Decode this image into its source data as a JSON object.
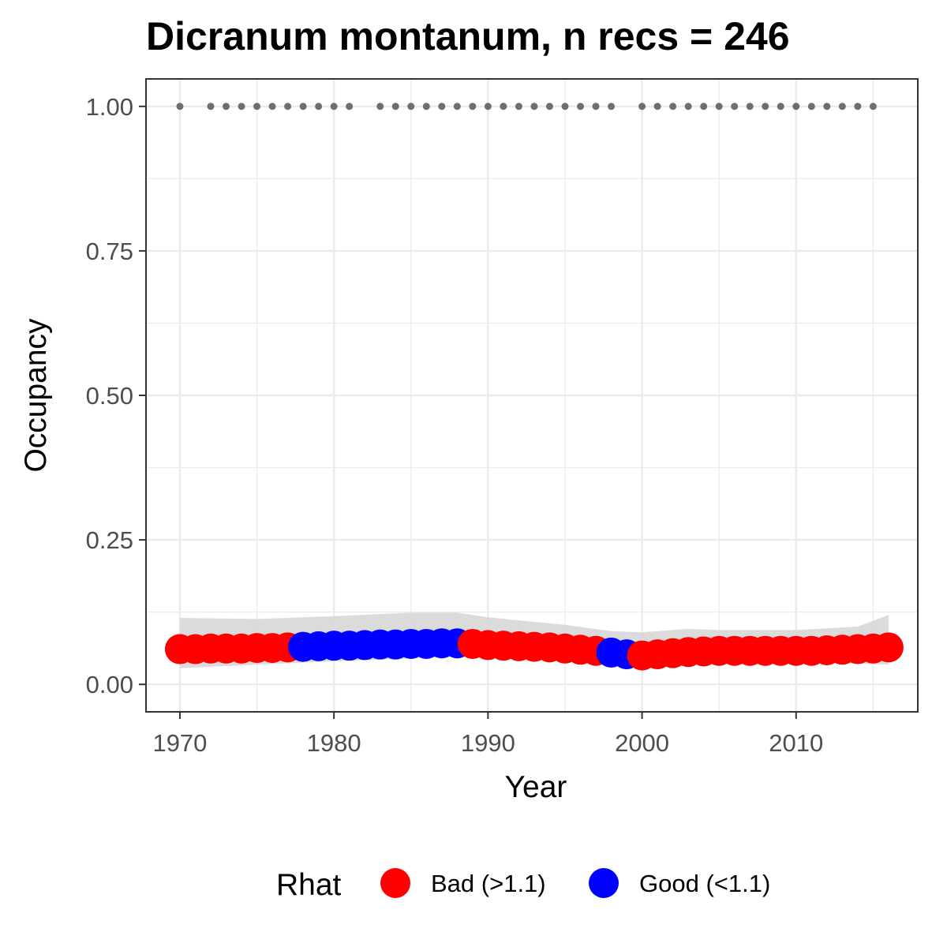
{
  "chart_data": {
    "type": "scatter",
    "title": "Dicranum montanum, n recs = 246",
    "xlabel": "Year",
    "ylabel": "Occupancy",
    "xlim": [
      1967.8,
      2017.9
    ],
    "ylim": [
      -0.0475,
      1.0475
    ],
    "x_ticks": [
      1970,
      1980,
      1990,
      2000,
      2010
    ],
    "x_tick_labels": [
      "1970",
      "1980",
      "1990",
      "2000",
      "2010"
    ],
    "y_ticks": [
      0,
      0.25,
      0.5,
      0.75,
      1.0
    ],
    "y_tick_labels": [
      "0.00",
      "0.25",
      "0.50",
      "0.75",
      "1.00"
    ],
    "grid": true,
    "legend": {
      "title": "Rhat",
      "position": "bottom",
      "items": [
        {
          "label": "Bad (>1.1)",
          "color": "#ff0000"
        },
        {
          "label": "Good (<1.1)",
          "color": "#0000ff"
        }
      ]
    },
    "colors": {
      "Bad": "#ff0000",
      "Good": "#0000ff",
      "ribbon": "#d9d9d9",
      "records": "#6e6e6e"
    },
    "series": [
      {
        "name": "Rhat",
        "x": [
          1970,
          1971,
          1972,
          1973,
          1974,
          1975,
          1976,
          1977,
          1978,
          1979,
          1980,
          1981,
          1982,
          1983,
          1984,
          1985,
          1986,
          1987,
          1988,
          1989,
          1990,
          1991,
          1992,
          1993,
          1994,
          1995,
          1996,
          1997,
          1998,
          1999,
          2000,
          2001,
          2002,
          2003,
          2004,
          2005,
          2006,
          2007,
          2008,
          2009,
          2010,
          2011,
          2012,
          2013,
          2014,
          2015,
          2016
        ],
        "y": [
          0.061,
          0.061,
          0.062,
          0.062,
          0.062,
          0.063,
          0.063,
          0.064,
          0.065,
          0.066,
          0.067,
          0.067,
          0.068,
          0.069,
          0.069,
          0.07,
          0.07,
          0.071,
          0.071,
          0.07,
          0.068,
          0.067,
          0.066,
          0.065,
          0.064,
          0.062,
          0.06,
          0.058,
          0.055,
          0.052,
          0.05,
          0.052,
          0.054,
          0.056,
          0.057,
          0.058,
          0.058,
          0.058,
          0.058,
          0.058,
          0.058,
          0.058,
          0.059,
          0.06,
          0.061,
          0.062,
          0.064
        ],
        "rhat": [
          "Bad",
          "Bad",
          "Bad",
          "Bad",
          "Bad",
          "Bad",
          "Bad",
          "Bad",
          "Good",
          "Good",
          "Good",
          "Good",
          "Good",
          "Good",
          "Good",
          "Good",
          "Good",
          "Good",
          "Good",
          "Bad",
          "Bad",
          "Bad",
          "Bad",
          "Bad",
          "Bad",
          "Bad",
          "Bad",
          "Bad",
          "Good",
          "Good",
          "Bad",
          "Bad",
          "Bad",
          "Bad",
          "Bad",
          "Bad",
          "Bad",
          "Bad",
          "Bad",
          "Bad",
          "Bad",
          "Bad",
          "Bad",
          "Bad",
          "Bad",
          "Bad",
          "Bad"
        ]
      },
      {
        "name": "ribbon",
        "x": [
          1970,
          1975,
          1980,
          1985,
          1988,
          1990,
          1995,
          1998,
          2000,
          2003,
          2005,
          2010,
          2014,
          2016
        ],
        "lower": [
          0.028,
          0.034,
          0.04,
          0.045,
          0.048,
          0.048,
          0.042,
          0.035,
          0.032,
          0.034,
          0.035,
          0.036,
          0.036,
          0.034
        ],
        "upper": [
          0.115,
          0.113,
          0.118,
          0.124,
          0.124,
          0.116,
          0.103,
          0.092,
          0.09,
          0.096,
          0.094,
          0.094,
          0.1,
          0.12
        ]
      },
      {
        "name": "records",
        "x": [
          1970,
          1972,
          1973,
          1974,
          1975,
          1976,
          1977,
          1978,
          1979,
          1980,
          1981,
          1983,
          1984,
          1985,
          1986,
          1987,
          1988,
          1989,
          1990,
          1991,
          1992,
          1993,
          1994,
          1995,
          1996,
          1997,
          1998,
          2000,
          2001,
          2002,
          2003,
          2004,
          2005,
          2006,
          2007,
          2008,
          2009,
          2010,
          2011,
          2012,
          2013,
          2014,
          2015
        ],
        "y": [
          1,
          1,
          1,
          1,
          1,
          1,
          1,
          1,
          1,
          1,
          1,
          1,
          1,
          1,
          1,
          1,
          1,
          1,
          1,
          1,
          1,
          1,
          1,
          1,
          1,
          1,
          1,
          1,
          1,
          1,
          1,
          1,
          1,
          1,
          1,
          1,
          1,
          1,
          1,
          1,
          1,
          1,
          1
        ]
      }
    ]
  }
}
